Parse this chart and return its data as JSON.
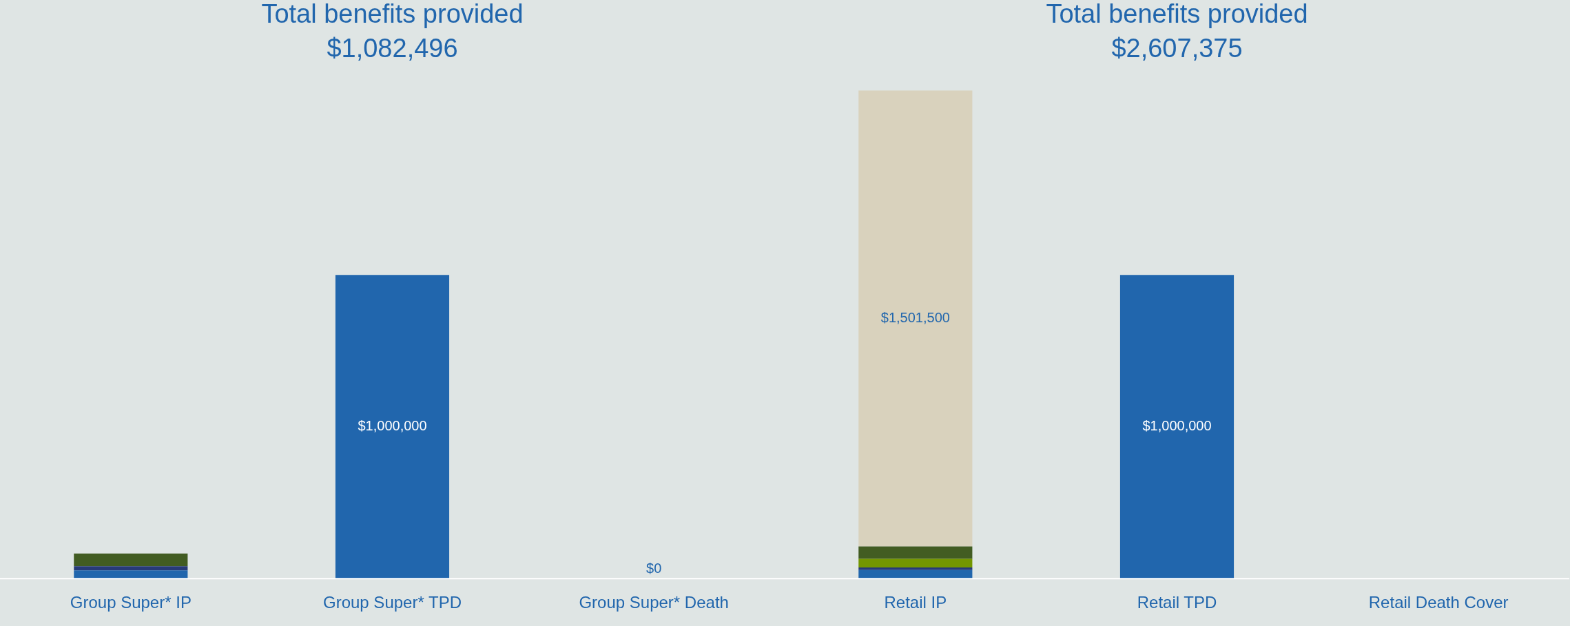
{
  "chart_data": [
    {
      "type": "bar",
      "title": "Total benefits provided",
      "subtitle": "$1,082,496",
      "stacked": true,
      "tick_labels": "x",
      "grid": false,
      "legend": false,
      "categories": [
        "Group Super* IP",
        "Group Super* TPD",
        "Group Super* Death"
      ],
      "series": [
        {
          "color": "#2166ad",
          "values": [
            27000,
            1000000,
            0
          ],
          "value_labels": [
            null,
            "$1,000,000",
            "$0"
          ]
        },
        {
          "color": "#273a78",
          "values": [
            13500,
            0,
            0
          ]
        },
        {
          "color": "#425c22",
          "values": [
            42000,
            0,
            0
          ]
        }
      ]
    },
    {
      "type": "bar",
      "title": "Total benefits provided",
      "subtitle": "$2,607,375",
      "stacked": true,
      "tick_labels": "x",
      "grid": false,
      "legend": false,
      "categories": [
        "Retail IP",
        "Retail TPD",
        "Retail Death Cover"
      ],
      "series": [
        {
          "color": "#2166ad",
          "values": [
            28000,
            1000000,
            0
          ],
          "value_labels": [
            null,
            "$1,000,000",
            null
          ]
        },
        {
          "color": "#273a78",
          "values": [
            9000,
            0,
            0
          ]
        },
        {
          "color": "#739600",
          "values": [
            28000,
            0,
            0
          ]
        },
        {
          "color": "#425c22",
          "values": [
            41000,
            0,
            0
          ]
        },
        {
          "color": "#d9d2bd",
          "values": [
            1501500,
            0,
            0
          ],
          "value_labels": [
            "$1,501,500",
            null,
            null
          ]
        }
      ]
    }
  ]
}
